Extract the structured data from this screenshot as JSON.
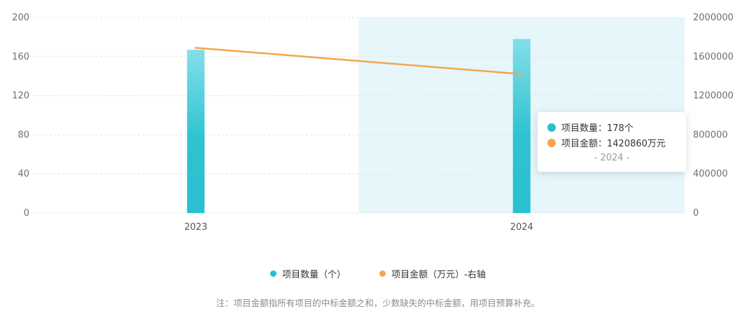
{
  "chart_data": {
    "type": "bar",
    "categories": [
      "2023",
      "2024"
    ],
    "series": [
      {
        "name": "项目数量（个）",
        "type": "bar",
        "axis": "left",
        "values": [
          167,
          178
        ],
        "color_top": "#83dfe9",
        "color_bottom": "#29c0cf"
      },
      {
        "name": "项目金额（万元）-右轴",
        "type": "line",
        "axis": "right",
        "values": [
          1690000,
          1420860
        ],
        "color": "#f4a54c"
      }
    ],
    "left_axis": {
      "ticks": [
        0,
        40,
        80,
        120,
        160,
        200
      ],
      "ylim": [
        0,
        200
      ]
    },
    "right_axis": {
      "ticks": [
        0,
        400000,
        800000,
        1200000,
        1600000,
        2000000
      ],
      "ylim": [
        0,
        2000000
      ]
    },
    "highlighted_category": "2024",
    "highlight_color": "#e6f6fa",
    "grid": "dashed horizontal",
    "legend_position": "bottom"
  },
  "tooltip": {
    "count_label": "项目数量：178个",
    "amount_label": "项目金额：1420860万元",
    "category": "- 2024 -",
    "count_color": "#29c0cf",
    "amount_color": "#f4a54c"
  },
  "legend": {
    "count": "项目数量（个）",
    "amount": "项目金额（万元）-右轴"
  },
  "note": "注：项目金额指所有项目的中标金额之和，少数缺失的中标金额，用项目预算补充。"
}
